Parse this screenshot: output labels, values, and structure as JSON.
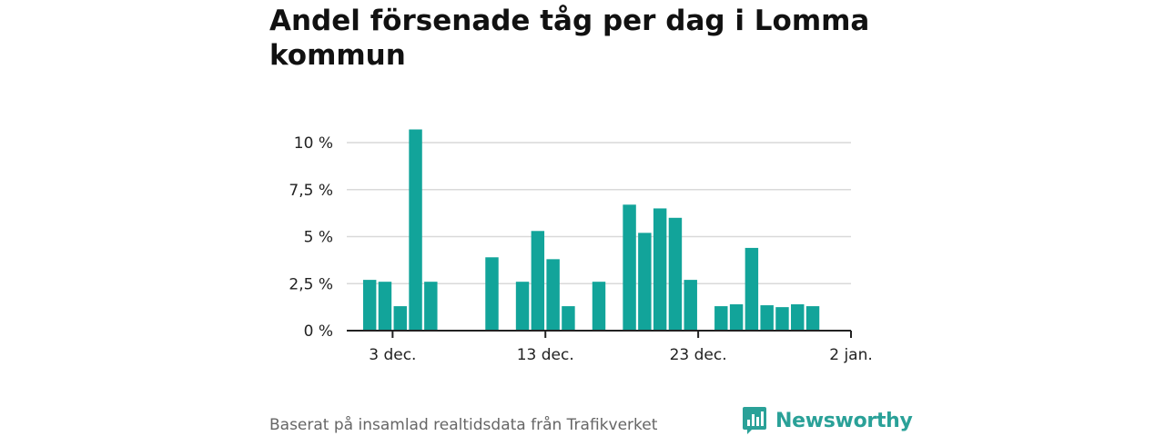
{
  "chart_data": {
    "type": "bar",
    "title": "Andel försenade tåg per dag i Lomma kommun",
    "xlabel": "",
    "ylabel": "",
    "ylim": [
      0,
      11
    ],
    "y_ticks": [
      {
        "value": 0,
        "label": "0 %"
      },
      {
        "value": 2.5,
        "label": "2,5 %"
      },
      {
        "value": 5,
        "label": "5 %"
      },
      {
        "value": 7.5,
        "label": "7,5 %"
      },
      {
        "value": 10,
        "label": "10 %"
      }
    ],
    "x_range": [
      "2023-11-30",
      "2024-01-02"
    ],
    "x_ticks": [
      {
        "date": "2023-12-03",
        "label": "3 dec."
      },
      {
        "date": "2023-12-13",
        "label": "13 dec."
      },
      {
        "date": "2023-12-23",
        "label": "23 dec."
      },
      {
        "date": "2024-01-02",
        "label": "2 jan."
      }
    ],
    "bar_color": "#12a49a",
    "grid": true,
    "points": [
      {
        "date": "2023-12-01",
        "value": 2.7
      },
      {
        "date": "2023-12-02",
        "value": 2.6
      },
      {
        "date": "2023-12-03",
        "value": 1.3
      },
      {
        "date": "2023-12-04",
        "value": 10.7
      },
      {
        "date": "2023-12-05",
        "value": 2.6
      },
      {
        "date": "2023-12-09",
        "value": 3.9
      },
      {
        "date": "2023-12-11",
        "value": 2.6
      },
      {
        "date": "2023-12-12",
        "value": 5.3
      },
      {
        "date": "2023-12-13",
        "value": 3.8
      },
      {
        "date": "2023-12-14",
        "value": 1.3
      },
      {
        "date": "2023-12-16",
        "value": 2.6
      },
      {
        "date": "2023-12-18",
        "value": 6.7
      },
      {
        "date": "2023-12-19",
        "value": 5.2
      },
      {
        "date": "2023-12-20",
        "value": 6.5
      },
      {
        "date": "2023-12-21",
        "value": 6.0
      },
      {
        "date": "2023-12-22",
        "value": 2.7
      },
      {
        "date": "2023-12-24",
        "value": 1.3
      },
      {
        "date": "2023-12-25",
        "value": 1.4
      },
      {
        "date": "2023-12-26",
        "value": 4.4
      },
      {
        "date": "2023-12-27",
        "value": 1.35
      },
      {
        "date": "2023-12-28",
        "value": 1.25
      },
      {
        "date": "2023-12-29",
        "value": 1.4
      },
      {
        "date": "2023-12-30",
        "value": 1.3
      }
    ]
  },
  "footer": {
    "source": "Baserat på insamlad realtidsdata från Trafikverket",
    "brand": "Newsworthy",
    "brand_color": "#2aa198",
    "brand_icon": "newsworthy-logo-icon"
  }
}
